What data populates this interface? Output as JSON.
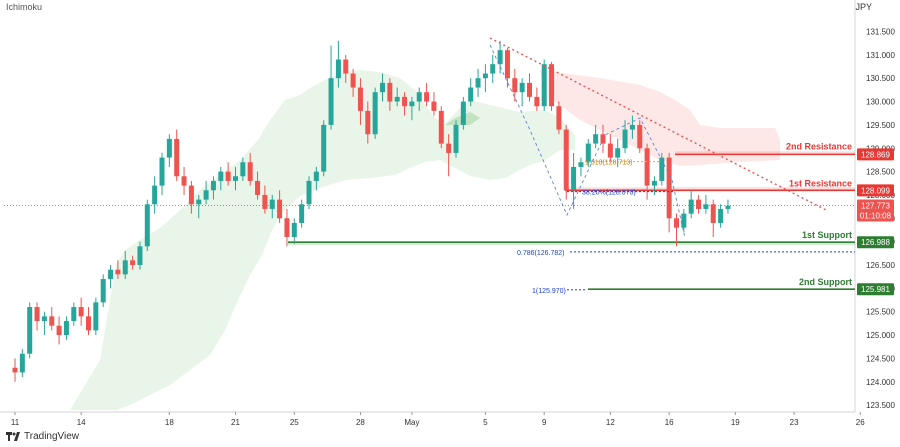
{
  "header": {
    "indicator": "Ichimoku",
    "currency": "JPY"
  },
  "footer": {
    "brand": "TradingView"
  },
  "colors": {
    "bull": "#26a69a",
    "bear": "#ef5350",
    "support": "#2e7d32",
    "resistance": "#e53935",
    "fib": "#1e3fd8",
    "fib_orange": "#f9a825",
    "cloud_green": "#4caf50",
    "cloud_red": "#f44336"
  },
  "chart_data": {
    "type": "candlestick",
    "y_ticks": [
      "131.500",
      "131.000",
      "130.500",
      "130.000",
      "129.500",
      "129.000",
      "128.500",
      "128.000",
      "127.500",
      "127.000",
      "126.500",
      "126.000",
      "125.500",
      "125.000",
      "124.500",
      "124.000",
      "123.500"
    ],
    "x_ticks": [
      {
        "label": "11",
        "bar": 0
      },
      {
        "label": "14",
        "bar": 9
      },
      {
        "label": "18",
        "bar": 21
      },
      {
        "label": "21",
        "bar": 30
      },
      {
        "label": "25",
        "bar": 38
      },
      {
        "label": "28",
        "bar": 47
      },
      {
        "label": "May",
        "bar": 54
      },
      {
        "label": "5",
        "bar": 64
      },
      {
        "label": "9",
        "bar": 72
      },
      {
        "label": "12",
        "bar": 81
      },
      {
        "label": "16",
        "bar": 89
      },
      {
        "label": "19",
        "bar": 98
      },
      {
        "label": "23",
        "bar": 106
      },
      {
        "label": "26",
        "bar": 115
      }
    ],
    "ylim": [
      123.3,
      131.95
    ],
    "ohlc": [
      [
        124.3,
        124.5,
        124.0,
        124.2
      ],
      [
        124.2,
        124.7,
        124.1,
        124.6
      ],
      [
        124.6,
        125.7,
        124.5,
        125.6
      ],
      [
        125.6,
        125.7,
        125.1,
        125.3
      ],
      [
        125.3,
        125.5,
        125.0,
        125.4
      ],
      [
        125.4,
        125.6,
        125.1,
        125.2
      ],
      [
        125.2,
        125.4,
        124.8,
        125.0
      ],
      [
        125.0,
        125.4,
        124.9,
        125.3
      ],
      [
        125.3,
        125.7,
        125.2,
        125.6
      ],
      [
        125.6,
        125.8,
        125.2,
        125.4
      ],
      [
        125.4,
        125.6,
        125.0,
        125.1
      ],
      [
        125.1,
        125.8,
        125.0,
        125.7
      ],
      [
        125.7,
        126.3,
        125.6,
        126.2
      ],
      [
        126.2,
        126.5,
        126.0,
        126.4
      ],
      [
        126.4,
        126.6,
        126.2,
        126.3
      ],
      [
        126.3,
        126.8,
        126.2,
        126.6
      ],
      [
        126.6,
        126.7,
        126.4,
        126.5
      ],
      [
        126.5,
        127.0,
        126.4,
        126.9
      ],
      [
        126.9,
        127.9,
        126.8,
        127.8
      ],
      [
        127.8,
        128.4,
        127.6,
        128.2
      ],
      [
        128.2,
        128.9,
        128.0,
        128.8
      ],
      [
        128.8,
        129.3,
        128.6,
        129.2
      ],
      [
        129.2,
        129.4,
        128.3,
        128.4
      ],
      [
        128.4,
        128.6,
        128.0,
        128.2
      ],
      [
        128.2,
        128.3,
        127.6,
        127.8
      ],
      [
        127.8,
        128.0,
        127.5,
        127.9
      ],
      [
        127.9,
        128.3,
        127.8,
        128.1
      ],
      [
        128.1,
        128.4,
        127.9,
        128.3
      ],
      [
        128.3,
        128.6,
        128.1,
        128.5
      ],
      [
        128.5,
        128.7,
        128.2,
        128.3
      ],
      [
        128.3,
        128.6,
        128.1,
        128.4
      ],
      [
        128.4,
        128.8,
        128.3,
        128.7
      ],
      [
        128.7,
        128.9,
        128.2,
        128.3
      ],
      [
        128.3,
        128.5,
        127.9,
        128.0
      ],
      [
        128.0,
        128.2,
        127.6,
        127.7
      ],
      [
        127.7,
        128.0,
        127.5,
        127.9
      ],
      [
        127.9,
        128.1,
        127.4,
        127.5
      ],
      [
        127.5,
        127.7,
        126.9,
        127.1
      ],
      [
        127.1,
        127.5,
        126.95,
        127.4
      ],
      [
        127.4,
        127.9,
        127.3,
        127.8
      ],
      [
        127.8,
        128.4,
        127.7,
        128.3
      ],
      [
        128.3,
        128.6,
        128.1,
        128.5
      ],
      [
        128.5,
        129.6,
        128.4,
        129.5
      ],
      [
        129.5,
        131.2,
        129.4,
        130.5
      ],
      [
        130.5,
        131.3,
        130.3,
        130.9
      ],
      [
        130.9,
        131.0,
        130.4,
        130.6
      ],
      [
        130.6,
        130.7,
        130.1,
        130.3
      ],
      [
        130.3,
        130.5,
        129.5,
        129.8
      ],
      [
        129.8,
        130.0,
        129.1,
        129.3
      ],
      [
        129.3,
        130.3,
        129.2,
        130.2
      ],
      [
        130.2,
        130.6,
        130.0,
        130.4
      ],
      [
        130.4,
        130.5,
        129.8,
        130.0
      ],
      [
        130.0,
        130.3,
        129.9,
        130.1
      ],
      [
        130.1,
        130.2,
        129.7,
        129.9
      ],
      [
        129.9,
        130.1,
        129.6,
        130.0
      ],
      [
        130.0,
        130.3,
        129.8,
        130.2
      ],
      [
        130.2,
        130.4,
        129.9,
        130.0
      ],
      [
        130.0,
        130.2,
        129.7,
        129.8
      ],
      [
        129.8,
        129.9,
        129.0,
        129.1
      ],
      [
        129.1,
        129.3,
        128.4,
        128.9
      ],
      [
        128.9,
        129.6,
        128.8,
        129.5
      ],
      [
        129.5,
        130.1,
        129.4,
        130.0
      ],
      [
        130.0,
        130.5,
        129.9,
        130.3
      ],
      [
        130.3,
        130.7,
        130.1,
        130.5
      ],
      [
        130.5,
        130.8,
        130.2,
        130.6
      ],
      [
        130.6,
        131.0,
        130.4,
        130.8
      ],
      [
        130.8,
        131.3,
        130.6,
        131.1
      ],
      [
        131.1,
        131.15,
        130.3,
        130.5
      ],
      [
        130.5,
        130.7,
        130.0,
        130.2
      ],
      [
        130.2,
        130.5,
        129.9,
        130.4
      ],
      [
        130.4,
        130.6,
        130.0,
        130.1
      ],
      [
        130.1,
        130.3,
        129.8,
        129.9
      ],
      [
        129.9,
        130.9,
        129.8,
        130.8
      ],
      [
        130.8,
        130.85,
        129.8,
        129.9
      ],
      [
        129.9,
        130.0,
        129.3,
        129.4
      ],
      [
        129.4,
        129.5,
        127.9,
        128.1
      ],
      [
        128.1,
        128.9,
        127.7,
        128.6
      ],
      [
        128.6,
        128.8,
        128.4,
        128.7
      ],
      [
        128.7,
        129.2,
        128.6,
        129.1
      ],
      [
        129.1,
        129.5,
        129.0,
        129.3
      ],
      [
        129.3,
        129.5,
        128.9,
        129.1
      ],
      [
        129.1,
        129.3,
        128.7,
        128.8
      ],
      [
        128.8,
        129.2,
        128.6,
        129.0
      ],
      [
        129.0,
        129.6,
        128.9,
        129.4
      ],
      [
        129.4,
        129.7,
        129.2,
        129.5
      ],
      [
        129.5,
        129.6,
        128.9,
        129.0
      ],
      [
        129.0,
        129.1,
        127.9,
        128.2
      ],
      [
        128.2,
        128.4,
        128.0,
        128.3
      ],
      [
        128.3,
        128.9,
        128.2,
        128.8
      ],
      [
        128.8,
        128.9,
        127.2,
        127.5
      ],
      [
        127.5,
        127.6,
        126.9,
        127.3
      ],
      [
        127.3,
        127.7,
        127.2,
        127.6
      ],
      [
        127.6,
        128.1,
        127.5,
        127.9
      ],
      [
        127.9,
        128.0,
        127.6,
        127.7
      ],
      [
        127.7,
        128.0,
        127.6,
        127.8
      ],
      [
        127.8,
        127.9,
        127.1,
        127.4
      ],
      [
        127.4,
        127.8,
        127.3,
        127.7
      ],
      [
        127.7,
        127.9,
        127.6,
        127.77
      ]
    ],
    "levels": {
      "resistance_2": {
        "label": "2nd Resistance",
        "value": "128.869"
      },
      "resistance_1": {
        "label": "1st Resistance",
        "value": "128.099"
      },
      "current": {
        "value": "127.773",
        "timer": "01:10:08"
      },
      "support_1": {
        "label": "1st Support",
        "value": "126.988"
      },
      "support_2": {
        "label": "2nd Support",
        "value": "125.981"
      }
    },
    "fib_labels": {
      "f1618": "1.618(128.713)",
      "f382": "38.20%(128.070)",
      "f786": "0.786(126.782)",
      "f1": "1(125.970)"
    }
  }
}
